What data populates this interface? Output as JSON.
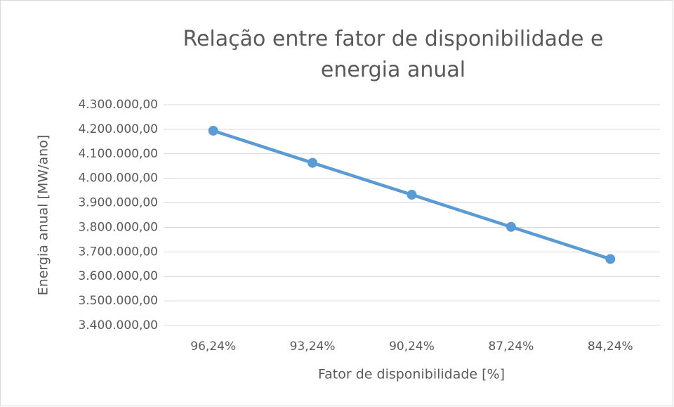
{
  "chart_data": {
    "type": "line",
    "title": "Relação entre fator de disponibilidade e energia anual",
    "x_label": "Fator de disponibilidade [%]",
    "y_label": "Energia anual [MW/ano]",
    "categories": [
      "96,24%",
      "93,24%",
      "90,24%",
      "87,24%",
      "84,24%"
    ],
    "series": [
      {
        "name": "Energia anual",
        "color": "#5b9bd5",
        "values": [
          4194000,
          4063000,
          3933000,
          3802000,
          3671000
        ]
      }
    ],
    "ylim": [
      3400000,
      4300000
    ],
    "yticks": [
      {
        "value": 3400000,
        "label": "3.400.000,00"
      },
      {
        "value": 3500000,
        "label": "3.500.000,00"
      },
      {
        "value": 3600000,
        "label": "3.600.000,00"
      },
      {
        "value": 3700000,
        "label": "3.700.000,00"
      },
      {
        "value": 3800000,
        "label": "3.800.000,00"
      },
      {
        "value": 3900000,
        "label": "3.900.000,00"
      },
      {
        "value": 4000000,
        "label": "4.000.000,00"
      },
      {
        "value": 4100000,
        "label": "4.100.000,00"
      },
      {
        "value": 4200000,
        "label": "4.200.000,00"
      },
      {
        "value": 4300000,
        "label": "4.300.000,00"
      }
    ],
    "grid": true
  }
}
